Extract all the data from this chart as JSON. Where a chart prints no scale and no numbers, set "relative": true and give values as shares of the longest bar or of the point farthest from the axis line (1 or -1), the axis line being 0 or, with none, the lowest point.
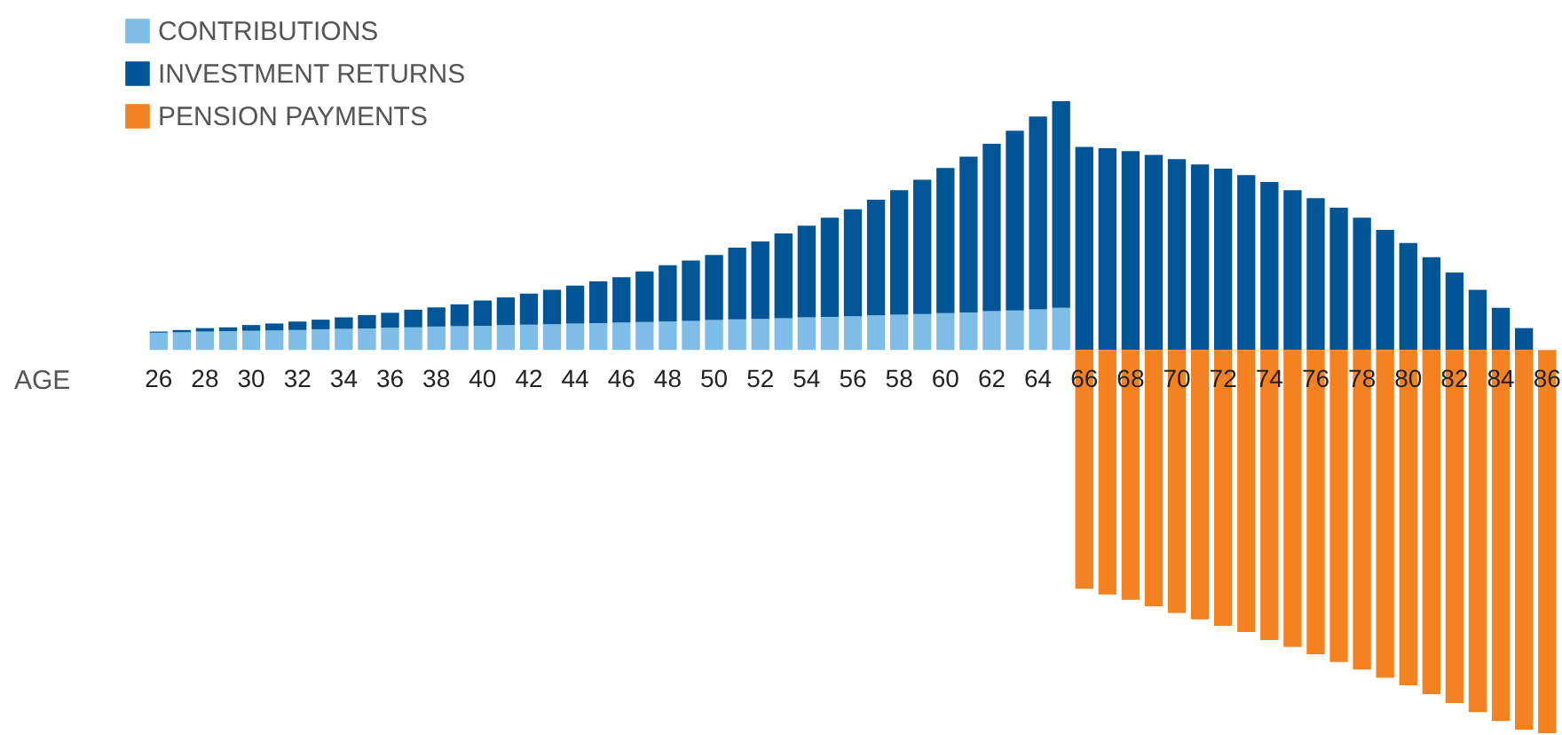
{
  "chart_data": {
    "type": "bar",
    "stacked": true,
    "relative": true,
    "legend": "top left",
    "xlabel": "AGE",
    "categories": [
      "26",
      null,
      "28",
      null,
      "30",
      null,
      "32",
      null,
      "34",
      null,
      "36",
      null,
      "38",
      null,
      "40",
      null,
      "42",
      null,
      "44",
      null,
      "46",
      null,
      "48",
      null,
      "50",
      null,
      "52",
      null,
      "54",
      null,
      "56",
      null,
      "58",
      null,
      "60",
      null,
      "62",
      null,
      "64",
      null,
      "66",
      null,
      "68",
      null,
      "70",
      null,
      "72",
      null,
      "74",
      null,
      "76",
      null,
      "78",
      null,
      "80",
      null,
      "82",
      null,
      "84",
      null,
      "86"
    ],
    "series": [
      {
        "name": "CONTRIBUTIONS",
        "color": "#7dbde8",
        "values": [
          0.045,
          0.046,
          0.048,
          0.049,
          0.05,
          0.051,
          0.052,
          0.054,
          0.055,
          0.056,
          0.058,
          0.059,
          0.061,
          0.062,
          0.063,
          0.065,
          0.066,
          0.067,
          0.069,
          0.07,
          0.072,
          0.073,
          0.074,
          0.076,
          0.078,
          0.08,
          0.081,
          0.083,
          0.085,
          0.086,
          0.088,
          0.09,
          0.092,
          0.094,
          0.096,
          0.098,
          0.101,
          0.103,
          0.106,
          0.11,
          null,
          null,
          null,
          null,
          null,
          null,
          null,
          null,
          null,
          null,
          null,
          null,
          null,
          null,
          null,
          null,
          null,
          null,
          null,
          null,
          null
        ]
      },
      {
        "name": "INVESTMENT RETURNS",
        "color": "#005596",
        "values": [
          0.003,
          0.006,
          0.009,
          0.01,
          0.015,
          0.018,
          0.022,
          0.025,
          0.03,
          0.035,
          0.039,
          0.046,
          0.05,
          0.057,
          0.066,
          0.072,
          0.081,
          0.09,
          0.099,
          0.109,
          0.118,
          0.132,
          0.147,
          0.157,
          0.17,
          0.187,
          0.202,
          0.221,
          0.239,
          0.259,
          0.279,
          0.302,
          0.325,
          0.35,
          0.379,
          0.406,
          0.437,
          0.469,
          0.503,
          0.539,
          0.53,
          0.526,
          0.519,
          0.509,
          0.498,
          0.484,
          0.473,
          0.456,
          0.438,
          0.417,
          0.396,
          0.371,
          0.345,
          0.313,
          0.279,
          0.242,
          0.202,
          0.157,
          0.11,
          0.057,
          null
        ]
      },
      {
        "name": "PENSION PAYMENTS",
        "color": "#f58220",
        "values": [
          null,
          null,
          null,
          null,
          null,
          null,
          null,
          null,
          null,
          null,
          null,
          null,
          null,
          null,
          null,
          null,
          null,
          null,
          null,
          null,
          null,
          null,
          null,
          null,
          null,
          null,
          null,
          null,
          null,
          null,
          null,
          null,
          null,
          null,
          null,
          null,
          null,
          null,
          null,
          null,
          -0.623,
          -0.638,
          -0.652,
          -0.669,
          -0.686,
          -0.703,
          -0.72,
          -0.736,
          -0.757,
          -0.775,
          -0.794,
          -0.814,
          -0.834,
          -0.855,
          -0.875,
          -0.898,
          -0.921,
          -0.945,
          -0.968,
          -0.991,
          -1
        ]
      }
    ]
  }
}
